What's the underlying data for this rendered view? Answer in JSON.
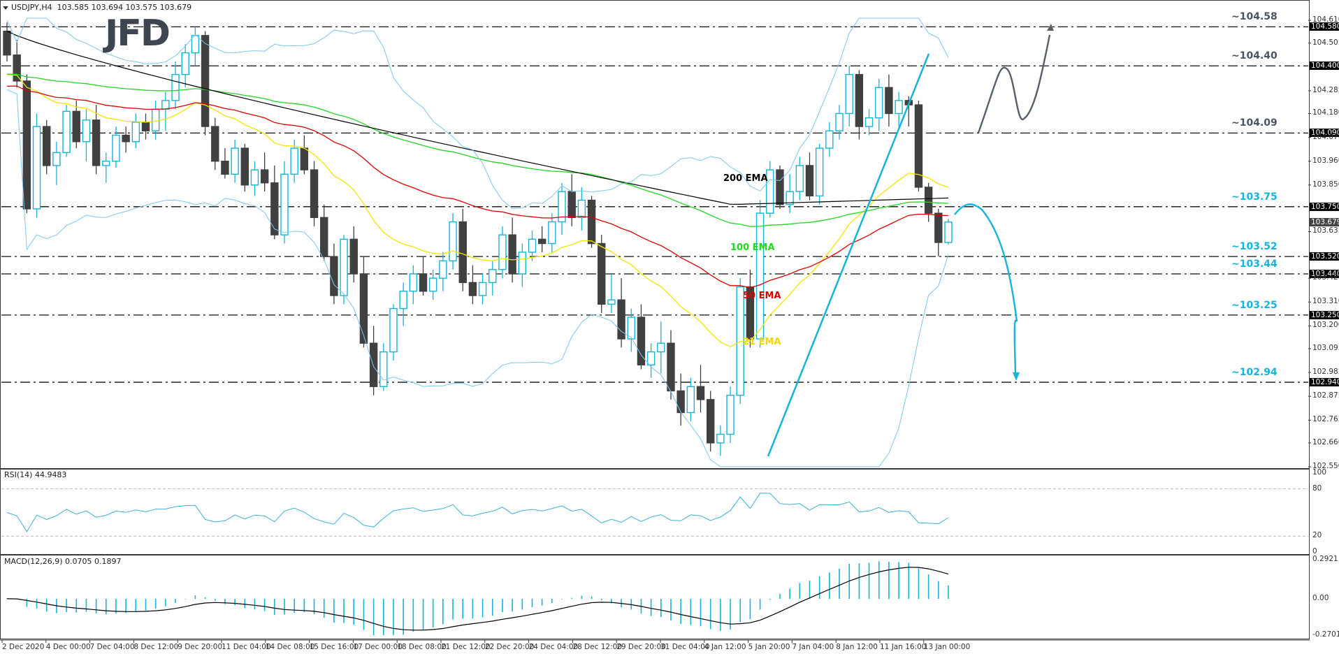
{
  "header": {
    "symbol": "USDJPY,H4",
    "ohlc": "103.585 103.694 103.575 103.679"
  },
  "logo": {
    "text": "JFD"
  },
  "colors": {
    "bull": "#16b4d8",
    "bear": "#404040",
    "ema200": "#000000",
    "ema100": "#22d622",
    "ema50": "#e00000",
    "ema21": "#f2e600",
    "bollinger": "#7cc7ec",
    "level_dark": "#4a5561",
    "level_cyan": "#14b4dc",
    "trendline": "#14b4dc",
    "scenario_up": "#56606b",
    "scenario_down": "#14b4dc",
    "rsi": "#3bb0d6",
    "macd_hist": "#16b4d8",
    "macd_signal": "#000000"
  },
  "price_axis": {
    "ticks": [
      "104.610",
      "104.505",
      "104.285",
      "104.180",
      "104.070",
      "103.960",
      "103.850",
      "103.635",
      "103.420",
      "103.310",
      "103.200",
      "103.095",
      "102.985",
      "102.875",
      "102.765",
      "102.660",
      "102.550"
    ],
    "current_price": "103.679"
  },
  "levels": [
    {
      "label": "~104.58",
      "axis": "104.580",
      "value": 104.58,
      "color": "dark"
    },
    {
      "label": "~104.40",
      "axis": "104.400",
      "value": 104.4,
      "color": "dark"
    },
    {
      "label": "~104.09",
      "axis": "104.090",
      "value": 104.09,
      "color": "dark"
    },
    {
      "label": "~103.75",
      "axis": "103.750",
      "value": 103.75,
      "color": "cyan"
    },
    {
      "label": "~103.52",
      "axis": "103.520",
      "value": 103.52,
      "color": "cyan"
    },
    {
      "label": "~103.44",
      "axis": "103.440",
      "value": 103.44,
      "color": "cyan"
    },
    {
      "label": "~103.25",
      "axis": "103.250",
      "value": 103.25,
      "color": "cyan"
    },
    {
      "label": "~102.94",
      "axis": "102.940",
      "value": 102.94,
      "color": "cyan"
    }
  ],
  "ema_labels": [
    {
      "text": "200 EMA",
      "color": "#000000"
    },
    {
      "text": "100 EMA",
      "color": "#22d622"
    },
    {
      "text": "50 EMA",
      "color": "#e00000"
    },
    {
      "text": "21 EMA",
      "color": "#f2d600"
    }
  ],
  "rsi": {
    "title": "RSI(14) 44.9483",
    "ticks": [
      "100",
      "80",
      "20",
      "0"
    ]
  },
  "macd": {
    "title": "MACD(12,26,9) 0.0705 0.1897",
    "ticks": [
      "0.2921",
      "0.00",
      "-0.2701"
    ]
  },
  "time_axis": [
    "2 Dec 2020",
    "4 Dec 00:00",
    "7 Dec 04:00",
    "8 Dec 12:00",
    "9 Dec 20:00",
    "11 Dec 04:00",
    "14 Dec 08:00",
    "15 Dec 16:00",
    "17 Dec 00:00",
    "18 Dec 08:00",
    "21 Dec 12:00",
    "22 Dec 20:00",
    "24 Dec 04:00",
    "28 Dec 12:00",
    "29 Dec 20:00",
    "31 Dec 04:00",
    "4 Jan 12:00",
    "5 Jan 20:00",
    "7 Jan 04:00",
    "8 Jan 12:00",
    "11 Jan 16:00",
    "13 Jan 00:00"
  ],
  "chart_data": {
    "type": "candlestick",
    "title": "USDJPY,H4",
    "ylim": [
      102.55,
      104.62
    ],
    "x_start_label": "2 Dec 2020",
    "x_end_label": "13 Jan 00:00",
    "candles": [
      [
        104.56,
        104.6,
        104.42,
        104.45
      ],
      [
        104.45,
        104.52,
        104.3,
        104.33
      ],
      [
        104.33,
        104.36,
        103.72,
        103.74
      ],
      [
        103.74,
        104.18,
        103.7,
        104.12
      ],
      [
        104.12,
        104.15,
        103.9,
        103.94
      ],
      [
        103.94,
        104.05,
        103.85,
        104.0
      ],
      [
        104.0,
        104.22,
        103.98,
        104.19
      ],
      [
        104.19,
        104.24,
        104.02,
        104.05
      ],
      [
        104.05,
        104.2,
        103.96,
        104.15
      ],
      [
        104.15,
        104.22,
        103.9,
        103.94
      ],
      [
        103.94,
        104.0,
        103.86,
        103.96
      ],
      [
        103.96,
        104.12,
        103.93,
        104.08
      ],
      [
        104.08,
        104.12,
        104.0,
        104.05
      ],
      [
        104.05,
        104.18,
        104.02,
        104.14
      ],
      [
        104.14,
        104.18,
        104.06,
        104.1
      ],
      [
        104.1,
        104.24,
        104.06,
        104.2
      ],
      [
        104.2,
        104.28,
        104.1,
        104.24
      ],
      [
        104.24,
        104.42,
        104.2,
        104.36
      ],
      [
        104.36,
        104.5,
        104.3,
        104.46
      ],
      [
        104.46,
        104.58,
        104.4,
        104.54
      ],
      [
        104.54,
        104.56,
        104.08,
        104.12
      ],
      [
        104.12,
        104.16,
        103.92,
        103.96
      ],
      [
        103.96,
        104.02,
        103.88,
        103.9
      ],
      [
        103.9,
        104.06,
        103.86,
        104.02
      ],
      [
        104.02,
        104.04,
        103.82,
        103.85
      ],
      [
        103.85,
        103.96,
        103.8,
        103.92
      ],
      [
        103.92,
        104.0,
        103.82,
        103.86
      ],
      [
        103.86,
        103.94,
        103.6,
        103.62
      ],
      [
        103.62,
        103.96,
        103.58,
        103.9
      ],
      [
        103.9,
        104.06,
        103.86,
        104.02
      ],
      [
        104.02,
        104.08,
        103.9,
        103.92
      ],
      [
        103.92,
        103.96,
        103.66,
        103.7
      ],
      [
        103.7,
        103.76,
        103.5,
        103.52
      ],
      [
        103.52,
        103.58,
        103.3,
        103.34
      ],
      [
        103.34,
        103.62,
        103.3,
        103.6
      ],
      [
        103.6,
        103.66,
        103.4,
        103.44
      ],
      [
        103.44,
        103.52,
        103.1,
        103.12
      ],
      [
        103.12,
        103.2,
        102.88,
        102.92
      ],
      [
        102.92,
        103.12,
        102.9,
        103.08
      ],
      [
        103.08,
        103.3,
        103.04,
        103.28
      ],
      [
        103.28,
        103.4,
        103.2,
        103.36
      ],
      [
        103.36,
        103.48,
        103.3,
        103.44
      ],
      [
        103.44,
        103.52,
        103.34,
        103.36
      ],
      [
        103.36,
        103.46,
        103.32,
        103.42
      ],
      [
        103.42,
        103.54,
        103.36,
        103.5
      ],
      [
        103.5,
        103.72,
        103.46,
        103.68
      ],
      [
        103.68,
        103.74,
        103.36,
        103.4
      ],
      [
        103.4,
        103.48,
        103.3,
        103.34
      ],
      [
        103.34,
        103.44,
        103.3,
        103.4
      ],
      [
        103.4,
        103.5,
        103.34,
        103.46
      ],
      [
        103.46,
        103.66,
        103.42,
        103.62
      ],
      [
        103.62,
        103.7,
        103.4,
        103.44
      ],
      [
        103.44,
        103.58,
        103.38,
        103.54
      ],
      [
        103.54,
        103.64,
        103.5,
        103.6
      ],
      [
        103.6,
        103.66,
        103.54,
        103.58
      ],
      [
        103.58,
        103.72,
        103.54,
        103.68
      ],
      [
        103.68,
        103.86,
        103.62,
        103.82
      ],
      [
        103.82,
        103.9,
        103.66,
        103.7
      ],
      [
        103.7,
        103.84,
        103.64,
        103.78
      ],
      [
        103.78,
        103.8,
        103.56,
        103.58
      ],
      [
        103.58,
        103.62,
        103.26,
        103.3
      ],
      [
        103.3,
        103.44,
        103.26,
        103.32
      ],
      [
        103.32,
        103.42,
        103.1,
        103.14
      ],
      [
        103.14,
        103.28,
        103.08,
        103.24
      ],
      [
        103.24,
        103.3,
        103.0,
        103.02
      ],
      [
        103.02,
        103.12,
        102.96,
        103.08
      ],
      [
        103.08,
        103.22,
        102.98,
        103.12
      ],
      [
        103.12,
        103.18,
        102.86,
        102.9
      ],
      [
        102.9,
        102.98,
        102.74,
        102.8
      ],
      [
        102.8,
        102.96,
        102.76,
        102.92
      ],
      [
        102.92,
        103.02,
        102.8,
        102.86
      ],
      [
        102.86,
        102.9,
        102.62,
        102.66
      ],
      [
        102.66,
        102.74,
        102.6,
        102.7
      ],
      [
        102.7,
        102.92,
        102.66,
        102.88
      ],
      [
        102.88,
        103.42,
        102.84,
        103.38
      ],
      [
        103.38,
        103.46,
        103.1,
        103.14
      ],
      [
        103.14,
        103.78,
        103.1,
        103.72
      ],
      [
        103.72,
        103.96,
        103.7,
        103.92
      ],
      [
        103.92,
        103.94,
        103.74,
        103.76
      ],
      [
        103.76,
        103.9,
        103.72,
        103.82
      ],
      [
        103.82,
        103.98,
        103.78,
        103.94
      ],
      [
        103.94,
        104.0,
        103.78,
        103.8
      ],
      [
        103.8,
        104.04,
        103.76,
        104.02
      ],
      [
        104.02,
        104.14,
        103.98,
        104.1
      ],
      [
        104.1,
        104.22,
        104.06,
        104.18
      ],
      [
        104.18,
        104.4,
        104.12,
        104.36
      ],
      [
        104.36,
        104.38,
        104.06,
        104.12
      ],
      [
        104.12,
        104.2,
        104.08,
        104.16
      ],
      [
        104.16,
        104.34,
        104.1,
        104.3
      ],
      [
        104.3,
        104.36,
        104.12,
        104.18
      ],
      [
        104.18,
        104.28,
        104.12,
        104.24
      ],
      [
        104.24,
        104.26,
        104.12,
        104.22
      ],
      [
        104.22,
        104.24,
        103.82,
        103.84
      ],
      [
        103.84,
        103.86,
        103.68,
        103.72
      ],
      [
        103.72,
        103.74,
        103.52,
        103.585
      ],
      [
        103.585,
        103.694,
        103.575,
        103.679
      ]
    ],
    "ema_200_approx": {
      "start": 104.56,
      "mid": 103.76,
      "end": 103.79
    },
    "levels": [
      104.58,
      104.4,
      104.09,
      103.75,
      103.52,
      103.44,
      103.25,
      102.94
    ],
    "annotations": [
      "200 EMA",
      "100 EMA",
      "50 EMA",
      "21 EMA",
      "upward scenario arrow to ~104.58",
      "downward scenario arrow to ~102.94",
      "rising trendline from 5 Jan low (broken)"
    ],
    "rsi": {
      "title": "RSI(14)",
      "last": 44.9483,
      "ylim": [
        0,
        100
      ],
      "guides": [
        20,
        80
      ]
    },
    "macd": {
      "title": "MACD(12,26,9)",
      "main": 0.0705,
      "signal": 0.1897,
      "ylim": [
        -0.2701,
        0.2921
      ]
    }
  }
}
